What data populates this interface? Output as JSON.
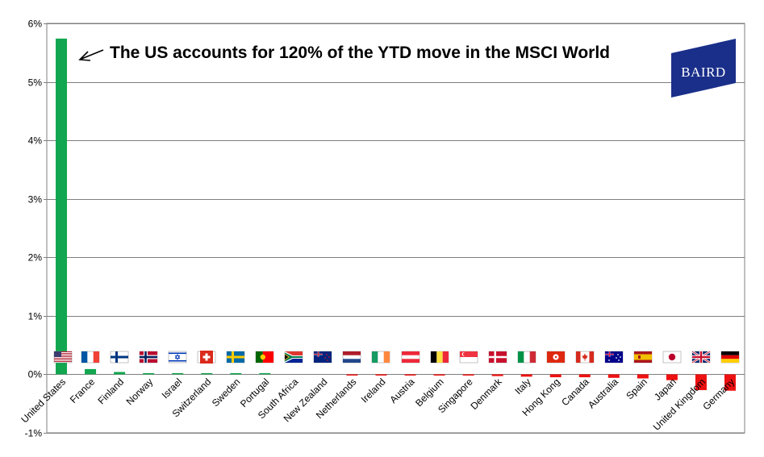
{
  "chart_data": {
    "type": "bar",
    "title": "",
    "xlabel": "",
    "ylabel": "",
    "ylim": [
      -0.01,
      0.06
    ],
    "yticks": [
      -0.01,
      0,
      0.01,
      0.02,
      0.03,
      0.04,
      0.05,
      0.06
    ],
    "ytick_labels": [
      "-1%",
      "0%",
      "1%",
      "2%",
      "3%",
      "4%",
      "5%",
      "6%"
    ],
    "grid": "horizontal",
    "categories": [
      "United States",
      "France",
      "Finland",
      "Norway",
      "Israel",
      "Switzerland",
      "Sweden",
      "Portugal",
      "South Africa",
      "New Zealand",
      "Netherlands",
      "Ireland",
      "Austria",
      "Belgium",
      "Singapore",
      "Denmark",
      "Italy",
      "Hong Kong",
      "Canada",
      "Australia",
      "Spain",
      "Japan",
      "United Kingdom",
      "Germany"
    ],
    "values": [
      0.0574,
      0.0009,
      0.0004,
      0.0002,
      0.0001,
      0.0001,
      0.0001,
      0.0001,
      0.0,
      0.0,
      -0.0001,
      -0.0001,
      -0.0001,
      -0.0002,
      -0.0002,
      -0.0003,
      -0.0004,
      -0.0005,
      -0.0005,
      -0.0006,
      -0.0007,
      -0.001,
      -0.0027,
      -0.0028
    ],
    "colors": {
      "positive": "#12a650",
      "negative": "#ee1111",
      "grid": "#7f7f7f"
    },
    "flags": [
      "flag-us-icon",
      "flag-france-icon",
      "flag-finland-icon",
      "flag-norway-icon",
      "flag-israel-icon",
      "flag-switzerland-icon",
      "flag-sweden-icon",
      "flag-portugal-icon",
      "flag-south-africa-icon",
      "flag-new-zealand-icon",
      "flag-netherlands-icon",
      "flag-ireland-icon",
      "flag-austria-icon",
      "flag-belgium-icon",
      "flag-singapore-icon",
      "flag-denmark-icon",
      "flag-italy-icon",
      "flag-hong-kong-icon",
      "flag-canada-icon",
      "flag-australia-icon",
      "flag-spain-icon",
      "flag-japan-icon",
      "flag-uk-icon",
      "flag-germany-icon"
    ],
    "annotation": "The US accounts for 120% of the YTD move in the MSCI World"
  },
  "logo": {
    "text": "BAIRD",
    "color": "#1a2f8a"
  }
}
